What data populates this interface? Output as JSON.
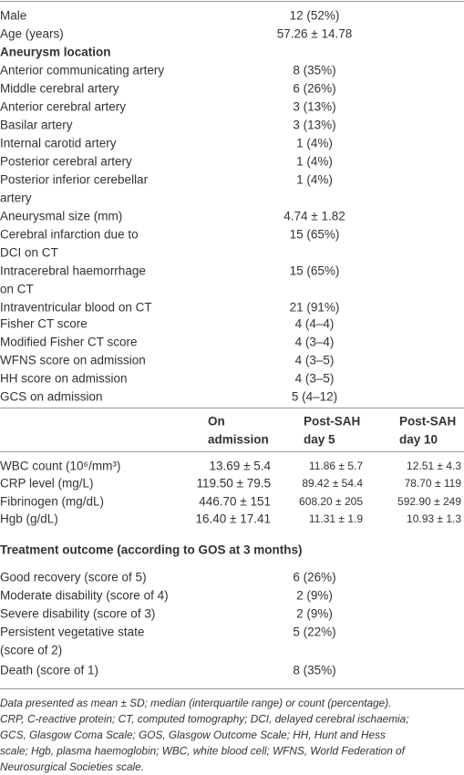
{
  "table": {
    "rows": [
      {
        "label": [
          "Male"
        ],
        "value": "12 (52%)"
      },
      {
        "label": [
          "Age (years)"
        ],
        "value": "57.26 ± 14.78"
      },
      {
        "heading": "Aneurysm location"
      },
      {
        "label": [
          "Anterior communicating artery"
        ],
        "value": "8 (35%)"
      },
      {
        "label": [
          "Middle cerebral artery"
        ],
        "value": "6 (26%)"
      },
      {
        "label": [
          "Anterior cerebral artery"
        ],
        "value": "3 (13%)"
      },
      {
        "label": [
          "Basilar artery"
        ],
        "value": "3 (13%)"
      },
      {
        "label": [
          "Internal carotid artery"
        ],
        "value": "1 (4%)"
      },
      {
        "label": [
          "Posterior cerebral artery"
        ],
        "value": "1 (4%)"
      },
      {
        "label": [
          "Posterior inferior cerebellar",
          "artery"
        ],
        "value": "1 (4%)"
      },
      {
        "label": [
          "Aneurysmal size (mm)"
        ],
        "value": "4.74 ± 1.82"
      },
      {
        "label": [
          "Cerebral infarction due to",
          "DCI on CT"
        ],
        "value": "15 (65%)"
      },
      {
        "label": [
          "Intracerebral haemorrhage",
          "on CT"
        ],
        "value": "15 (65%)"
      },
      {
        "label": [
          "Intraventricular blood on CT"
        ],
        "value": "21 (91%)"
      },
      {
        "label": [
          "Fisher CT score"
        ],
        "value": "4 (4–4)"
      },
      {
        "label": [
          "Modified Fisher CT score"
        ],
        "value": "4 (3–4)"
      },
      {
        "label": [
          "WFNS score on admission"
        ],
        "value": "4 (3–5)"
      },
      {
        "label": [
          "HH score on admission"
        ],
        "value": "4 (3–5)"
      },
      {
        "label": [
          "GCS on admission"
        ],
        "value": "5 (4–12)"
      }
    ]
  },
  "labs": {
    "header": [
      [
        "On",
        "admission"
      ],
      [
        "Post-SAH",
        "day 5"
      ],
      [
        "Post-SAH",
        "day 10"
      ]
    ],
    "rows": [
      {
        "label": "WBC count (10⁶/mm³)",
        "values": [
          "13.69 ± 5.4",
          "11.86 ± 5.7",
          "12.51 ± 4.3"
        ]
      },
      {
        "label": "CRP level (mg/L)",
        "values": [
          "119.50 ± 79.5",
          "89.42 ± 54.4",
          "78.70 ± 119"
        ]
      },
      {
        "label": "Fibrinogen (mg/dL)",
        "values": [
          "446.70 ± 151",
          "608.20 ± 205",
          "592.90 ± 249"
        ]
      },
      {
        "label": "Hgb (g/dL)",
        "values": [
          "16.40 ± 17.41",
          "11.31 ± 1.9",
          "10.93 ± 1.3"
        ]
      }
    ]
  },
  "outcome": {
    "title": "Treatment outcome (according to GOS at 3 months)",
    "rows": [
      {
        "label": [
          "Good recovery (score of 5)"
        ],
        "value": "6 (26%)"
      },
      {
        "label": [
          "Moderate disability (score of 4)"
        ],
        "value": "2 (9%)"
      },
      {
        "label": [
          "Severe disability (score of 3)"
        ],
        "value": "2 (9%)"
      },
      {
        "label": [
          "Persistent vegetative state",
          "(score of 2)"
        ],
        "value": "5 (22%)"
      },
      {
        "label": [
          "Death (score of 1)"
        ],
        "value": "8 (35%)"
      }
    ]
  },
  "footnote": [
    "Data presented as mean ± SD; median (interquartile range) or count (percentage).",
    "CRP, C-reactive protein; CT, computed tomography; DCI, delayed cerebral ischaemia;",
    "GCS, Glasgow Coma Scale; GOS, Glasgow Outcome Scale; HH, Hunt and Hess",
    "scale; Hgb, plasma haemoglobin; WBC, white blood cell; WFNS, World Federation of",
    "Neurosurgical Societies scale."
  ]
}
